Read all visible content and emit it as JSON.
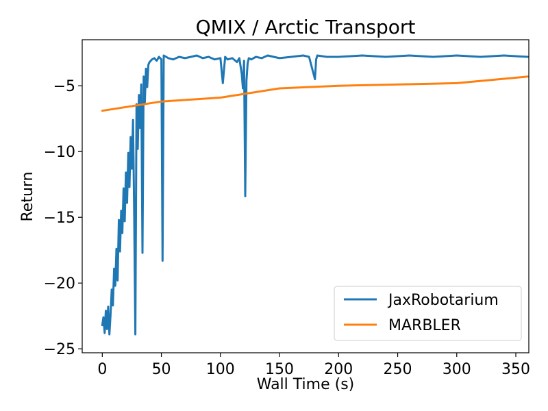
{
  "chart_data": {
    "type": "line",
    "title": "QMIX / Arctic Transport",
    "xlabel": "Wall Time (s)",
    "ylabel": "Return",
    "xlim": [
      -17,
      361
    ],
    "ylim": [
      -25.3,
      -1.5
    ],
    "xticks": [
      0,
      50,
      100,
      150,
      200,
      250,
      300,
      350
    ],
    "xtick_labels": [
      "0",
      "50",
      "100",
      "150",
      "200",
      "250",
      "300",
      "350"
    ],
    "yticks": [
      -25,
      -20,
      -15,
      -10,
      -5
    ],
    "ytick_labels": [
      "−25",
      "−20",
      "−15",
      "−10",
      "−5"
    ],
    "grid": false,
    "legend_position": "lower-right",
    "series": [
      {
        "name": "JaxRobotarium",
        "color": "#1f77b4",
        "x": [
          0,
          1,
          2,
          3,
          4,
          5,
          6,
          7,
          8,
          9,
          10,
          11,
          12,
          13,
          14,
          15,
          16,
          17,
          18,
          19,
          20,
          21,
          22,
          23,
          24,
          25,
          26,
          27,
          28,
          29,
          30,
          31,
          32,
          33,
          34,
          35,
          36,
          37,
          38,
          39,
          40,
          42,
          44,
          46,
          48,
          50,
          51,
          52,
          54,
          56,
          60,
          65,
          70,
          75,
          80,
          85,
          90,
          95,
          100,
          102,
          104,
          106,
          110,
          114,
          116,
          118,
          119,
          120,
          121,
          122,
          123,
          124,
          126,
          130,
          135,
          140,
          145,
          150,
          160,
          170,
          175,
          180,
          181,
          182,
          190,
          200,
          220,
          240,
          260,
          280,
          300,
          320,
          340,
          360
        ],
        "y": [
          -23.2,
          -22.6,
          -23.8,
          -22.1,
          -23.5,
          -21.8,
          -23.9,
          -22.4,
          -20.5,
          -21.7,
          -18.9,
          -20.2,
          -17.4,
          -19.8,
          -15.2,
          -17.6,
          -14.5,
          -16.2,
          -12.8,
          -15.3,
          -11.6,
          -13.9,
          -10.1,
          -12.7,
          -8.9,
          -11.3,
          -7.6,
          -14.8,
          -23.9,
          -6.4,
          -9.8,
          -5.7,
          -8.2,
          -4.9,
          -17.7,
          -4.3,
          -6.3,
          -3.7,
          -5.1,
          -3.4,
          -3.2,
          -3.0,
          -2.9,
          -3.1,
          -2.8,
          -3.0,
          -18.3,
          -2.7,
          -2.8,
          -2.9,
          -3.0,
          -2.8,
          -2.9,
          -2.8,
          -2.7,
          -2.9,
          -2.8,
          -3.0,
          -2.9,
          -4.8,
          -2.8,
          -3.0,
          -2.9,
          -3.2,
          -2.9,
          -4.1,
          -5.2,
          -3.1,
          -13.4,
          -4.6,
          -3.3,
          -2.9,
          -3.0,
          -2.8,
          -2.9,
          -2.7,
          -2.8,
          -2.9,
          -2.8,
          -2.7,
          -2.8,
          -4.5,
          -3.0,
          -2.7,
          -2.8,
          -2.8,
          -2.7,
          -2.8,
          -2.7,
          -2.8,
          -2.7,
          -2.8,
          -2.7,
          -2.8
        ]
      },
      {
        "name": "MARBLER",
        "color": "#ff7f0e",
        "x": [
          0,
          50,
          100,
          150,
          200,
          300,
          360
        ],
        "y": [
          -6.9,
          -6.2,
          -5.9,
          -5.2,
          -5.0,
          -4.8,
          -4.3
        ]
      }
    ]
  }
}
